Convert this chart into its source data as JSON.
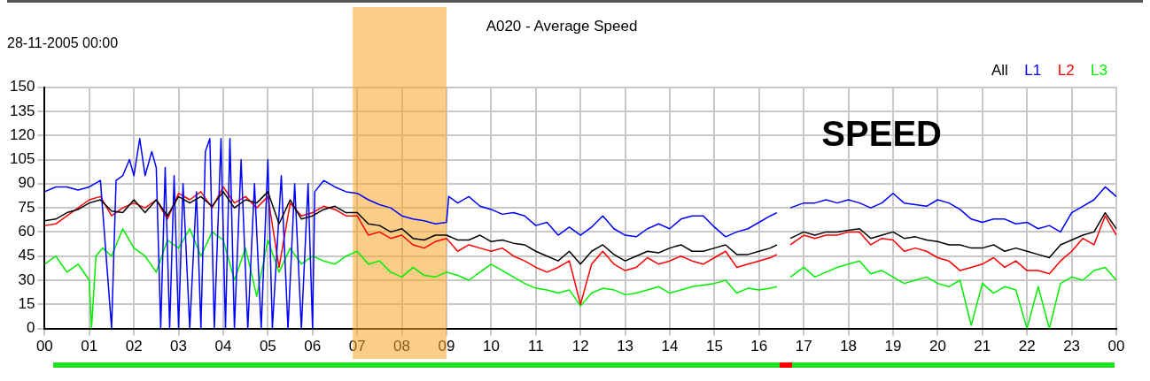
{
  "chart_data": {
    "type": "line",
    "title": "A020 - Average Speed",
    "subtitle": "28-11-2005 00:00",
    "annotations": [
      "SPEED"
    ],
    "xlim": [
      0,
      24
    ],
    "xticks": [
      {
        "value": 0,
        "label": "00"
      },
      {
        "value": 1,
        "label": "01"
      },
      {
        "value": 2,
        "label": "02"
      },
      {
        "value": 3,
        "label": "03"
      },
      {
        "value": 4,
        "label": "04"
      },
      {
        "value": 5,
        "label": "05"
      },
      {
        "value": 6,
        "label": "06"
      },
      {
        "value": 7,
        "label": "07"
      },
      {
        "value": 8,
        "label": "08"
      },
      {
        "value": 9,
        "label": "09"
      },
      {
        "value": 10,
        "label": "10"
      },
      {
        "value": 11,
        "label": "11"
      },
      {
        "value": 12,
        "label": "12"
      },
      {
        "value": 13,
        "label": "13"
      },
      {
        "value": 14,
        "label": "14"
      },
      {
        "value": 15,
        "label": "15"
      },
      {
        "value": 16,
        "label": "16"
      },
      {
        "value": 17,
        "label": "17"
      },
      {
        "value": 18,
        "label": "18"
      },
      {
        "value": 19,
        "label": "19"
      },
      {
        "value": 20,
        "label": "20"
      },
      {
        "value": 21,
        "label": "21"
      },
      {
        "value": 22,
        "label": "22"
      },
      {
        "value": 23,
        "label": "23"
      },
      {
        "value": 24,
        "label": "00"
      }
    ],
    "ylim": [
      0,
      150
    ],
    "yticks": [
      0,
      15,
      30,
      45,
      60,
      75,
      90,
      105,
      120,
      135,
      150
    ],
    "grid": true,
    "legend": "top right",
    "marker": "none",
    "line_style": "solid",
    "bands": [
      {
        "axis": "x",
        "from": 6.9,
        "to": 9,
        "color": "#f5a623"
      }
    ],
    "series": [
      {
        "name": "All",
        "color": "#000000",
        "x": [
          0,
          0.25,
          0.5,
          0.75,
          1,
          1.25,
          1.5,
          1.75,
          2,
          2.25,
          2.5,
          2.75,
          3,
          3.25,
          3.5,
          3.75,
          4,
          4.25,
          4.5,
          4.75,
          5,
          5.25,
          5.5,
          5.75,
          6,
          6.25,
          6.5,
          6.75,
          7,
          7.25,
          7.5,
          7.75,
          8,
          8.25,
          8.5,
          8.75,
          9,
          9.25,
          9.5,
          9.75,
          10,
          10.25,
          10.5,
          10.75,
          11,
          11.25,
          11.5,
          11.75,
          12,
          12.25,
          12.5,
          12.75,
          13,
          13.25,
          13.5,
          13.75,
          14,
          14.25,
          14.5,
          14.75,
          15,
          15.25,
          15.5,
          15.75,
          16,
          16.25,
          16.4,
          16.55,
          16.7,
          17,
          17.25,
          17.5,
          17.75,
          18,
          18.25,
          18.5,
          18.75,
          19,
          19.25,
          19.5,
          19.75,
          20,
          20.25,
          20.5,
          20.75,
          21,
          21.25,
          21.5,
          21.75,
          22,
          22.25,
          22.5,
          22.75,
          23,
          23.25,
          23.5,
          23.75,
          24
        ],
        "values": [
          67,
          68,
          72,
          74,
          78,
          80,
          73,
          72,
          80,
          72,
          80,
          70,
          82,
          78,
          82,
          76,
          85,
          75,
          80,
          78,
          85,
          65,
          80,
          68,
          70,
          74,
          76,
          72,
          72,
          65,
          64,
          60,
          62,
          56,
          55,
          58,
          58,
          55,
          55,
          58,
          54,
          55,
          53,
          52,
          48,
          45,
          42,
          48,
          40,
          48,
          52,
          46,
          42,
          45,
          48,
          47,
          50,
          52,
          48,
          48,
          50,
          52,
          46,
          46,
          48,
          50,
          52,
          null,
          56,
          60,
          58,
          60,
          60,
          61,
          62,
          56,
          58,
          60,
          56,
          57,
          55,
          54,
          52,
          52,
          50,
          50,
          52,
          48,
          50,
          48,
          46,
          44,
          52,
          55,
          58,
          60,
          72,
          62
        ]
      },
      {
        "name": "L1",
        "color": "#0000ff",
        "x": [
          0,
          0.25,
          0.5,
          0.75,
          1,
          1.25,
          1.5,
          1.6,
          1.75,
          1.9,
          2,
          2.13,
          2.25,
          2.4,
          2.5,
          2.6,
          2.7,
          2.8,
          2.9,
          3,
          3.1,
          3.25,
          3.4,
          3.5,
          3.6,
          3.7,
          3.8,
          3.95,
          4.05,
          4.15,
          4.25,
          4.4,
          4.55,
          4.7,
          4.85,
          5,
          5.1,
          5.3,
          5.45,
          5.6,
          5.75,
          5.9,
          6,
          6.05,
          6.25,
          6.5,
          6.75,
          7,
          7.25,
          7.5,
          7.75,
          8,
          8.25,
          8.5,
          8.75,
          9,
          9.05,
          9.25,
          9.5,
          9.75,
          10,
          10.25,
          10.5,
          10.75,
          11,
          11.25,
          11.5,
          11.75,
          12,
          12.25,
          12.5,
          12.75,
          13,
          13.25,
          13.5,
          13.75,
          14,
          14.25,
          14.5,
          14.75,
          15,
          15.25,
          15.5,
          15.75,
          16,
          16.25,
          16.4,
          16.55,
          16.7,
          17,
          17.25,
          17.5,
          17.75,
          18,
          18.25,
          18.5,
          18.75,
          19,
          19.25,
          19.5,
          19.75,
          20,
          20.25,
          20.5,
          20.75,
          21,
          21.25,
          21.5,
          21.75,
          22,
          22.25,
          22.5,
          22.75,
          23,
          23.25,
          23.5,
          23.75,
          24
        ],
        "values": [
          85,
          88,
          88,
          86,
          88,
          92,
          0,
          92,
          95,
          105,
          95,
          118,
          95,
          110,
          100,
          0,
          100,
          0,
          95,
          0,
          90,
          0,
          85,
          0,
          110,
          118,
          0,
          118,
          0,
          118,
          0,
          105,
          0,
          90,
          0,
          105,
          0,
          95,
          0,
          90,
          0,
          90,
          0,
          85,
          92,
          88,
          85,
          84,
          80,
          77,
          75,
          70,
          68,
          67,
          65,
          66,
          82,
          78,
          82,
          76,
          74,
          71,
          72,
          70,
          64,
          66,
          58,
          63,
          58,
          63,
          70,
          62,
          58,
          57,
          62,
          65,
          62,
          68,
          70,
          70,
          63,
          57,
          60,
          62,
          66,
          70,
          72,
          null,
          75,
          78,
          78,
          80,
          78,
          80,
          78,
          75,
          78,
          84,
          78,
          77,
          76,
          80,
          78,
          74,
          68,
          66,
          68,
          68,
          65,
          66,
          62,
          64,
          60,
          72,
          76,
          80,
          88,
          82
        ]
      },
      {
        "name": "L2",
        "color": "#ff0000",
        "x": [
          0,
          0.25,
          0.5,
          0.75,
          1,
          1.25,
          1.5,
          1.75,
          2,
          2.25,
          2.5,
          2.75,
          3,
          3.25,
          3.5,
          3.75,
          4,
          4.25,
          4.5,
          4.75,
          5,
          5.25,
          5.5,
          5.75,
          6,
          6.25,
          6.5,
          6.75,
          7,
          7.25,
          7.5,
          7.75,
          8,
          8.25,
          8.5,
          8.75,
          9,
          9.25,
          9.5,
          9.75,
          10,
          10.25,
          10.5,
          10.75,
          11,
          11.25,
          11.5,
          11.75,
          12,
          12.25,
          12.5,
          12.75,
          13,
          13.25,
          13.5,
          13.75,
          14,
          14.25,
          14.5,
          14.75,
          15,
          15.25,
          15.5,
          15.75,
          16,
          16.25,
          16.4,
          16.55,
          16.7,
          17,
          17.25,
          17.5,
          17.75,
          18,
          18.25,
          18.5,
          18.75,
          19,
          19.25,
          19.5,
          19.75,
          20,
          20.25,
          20.5,
          20.75,
          21,
          21.25,
          21.5,
          21.75,
          22,
          22.25,
          22.5,
          22.75,
          23,
          23.25,
          23.5,
          23.75,
          24
        ],
        "values": [
          64,
          65,
          70,
          75,
          80,
          82,
          70,
          75,
          78,
          75,
          80,
          68,
          84,
          80,
          85,
          75,
          88,
          78,
          82,
          75,
          82,
          38,
          78,
          70,
          72,
          76,
          74,
          70,
          70,
          58,
          60,
          56,
          58,
          52,
          50,
          54,
          56,
          48,
          52,
          50,
          48,
          50,
          45,
          42,
          38,
          35,
          38,
          42,
          15,
          40,
          48,
          40,
          36,
          38,
          44,
          40,
          42,
          45,
          42,
          40,
          44,
          48,
          38,
          40,
          42,
          44,
          46,
          null,
          52,
          58,
          56,
          58,
          58,
          60,
          60,
          52,
          56,
          55,
          48,
          50,
          48,
          44,
          42,
          36,
          38,
          40,
          44,
          38,
          42,
          36,
          36,
          34,
          42,
          48,
          56,
          52,
          70,
          58
        ]
      },
      {
        "name": "L3",
        "color": "#00ee00",
        "x": [
          0,
          0.25,
          0.5,
          0.75,
          1,
          1.05,
          1.15,
          1.3,
          1.5,
          1.75,
          2,
          2.25,
          2.5,
          2.75,
          3,
          3.25,
          3.5,
          3.75,
          4,
          4.25,
          4.5,
          4.75,
          5,
          5.25,
          5.5,
          5.75,
          6,
          6.25,
          6.5,
          6.75,
          7,
          7.25,
          7.5,
          7.75,
          8,
          8.25,
          8.5,
          8.75,
          9,
          9.25,
          9.5,
          9.75,
          10,
          10.25,
          10.5,
          10.75,
          11,
          11.25,
          11.5,
          11.75,
          12,
          12.25,
          12.5,
          12.75,
          13,
          13.25,
          13.5,
          13.75,
          14,
          14.25,
          14.5,
          14.75,
          15,
          15.25,
          15.5,
          15.75,
          16,
          16.25,
          16.4,
          16.55,
          16.7,
          17,
          17.25,
          17.5,
          17.75,
          18,
          18.25,
          18.5,
          18.75,
          19,
          19.25,
          19.5,
          19.75,
          20,
          20.25,
          20.5,
          20.75,
          21,
          21.25,
          21.5,
          21.75,
          22,
          22.25,
          22.5,
          22.75,
          23,
          23.25,
          23.5,
          23.75,
          24
        ],
        "values": [
          40,
          45,
          35,
          40,
          30,
          0,
          45,
          50,
          45,
          62,
          50,
          45,
          35,
          55,
          50,
          62,
          45,
          60,
          55,
          30,
          50,
          20,
          55,
          35,
          50,
          40,
          45,
          42,
          40,
          45,
          48,
          40,
          42,
          35,
          32,
          38,
          33,
          32,
          35,
          33,
          30,
          35,
          40,
          36,
          32,
          28,
          25,
          24,
          22,
          24,
          14,
          22,
          25,
          24,
          21,
          22,
          24,
          26,
          22,
          24,
          26,
          27,
          28,
          30,
          22,
          25,
          24,
          25,
          26,
          null,
          32,
          38,
          32,
          35,
          38,
          40,
          42,
          34,
          36,
          32,
          28,
          30,
          32,
          28,
          26,
          30,
          2,
          28,
          22,
          26,
          24,
          0,
          26,
          0,
          28,
          32,
          30,
          36,
          38,
          30
        ]
      }
    ]
  }
}
